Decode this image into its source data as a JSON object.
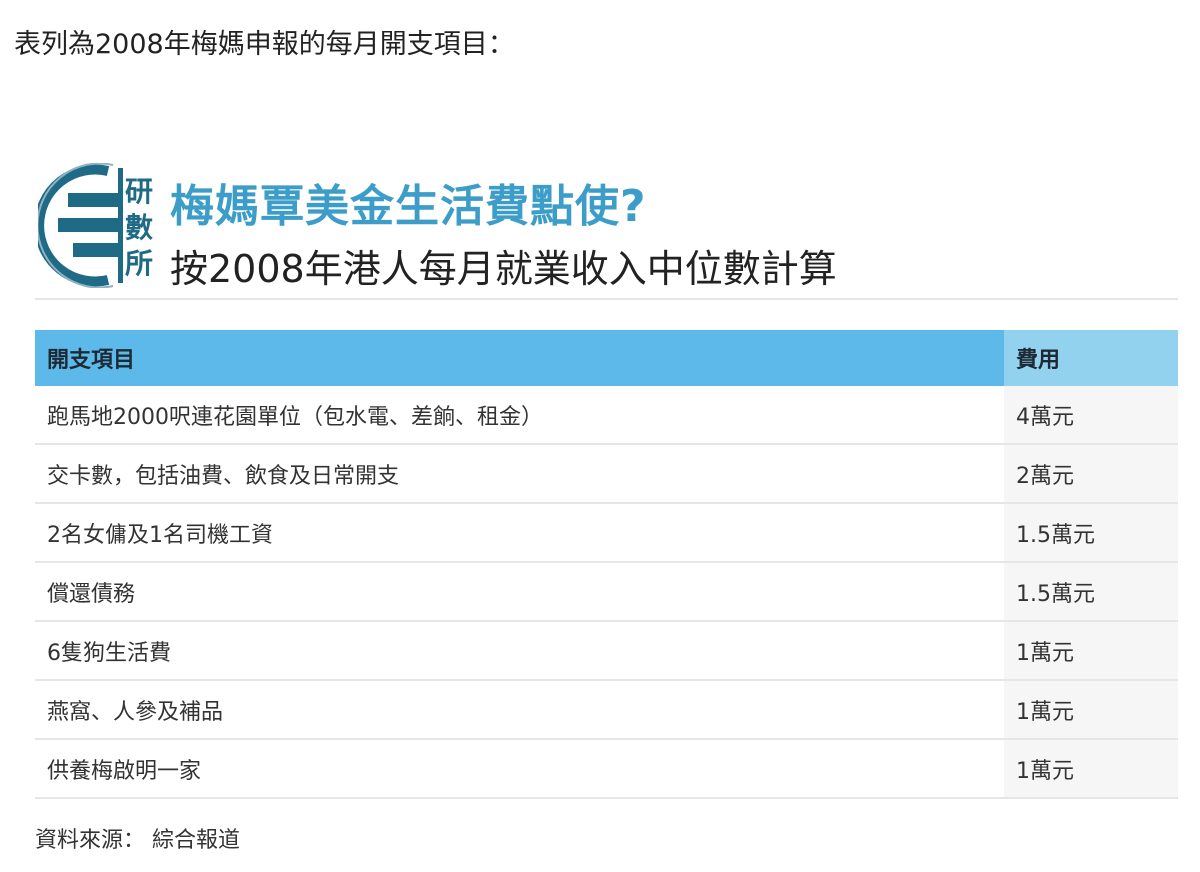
{
  "intro": "表列為2008年梅媽申報的每月開支項目：",
  "logo": {
    "text": "研數所",
    "color": "#1f6b86"
  },
  "title": "梅媽覃美金生活費點使?",
  "subtitle": "按2008年港人每月就業收入中位數計算",
  "table": {
    "headers": [
      "開支項目",
      "費用"
    ],
    "rows": [
      [
        "跑馬地2000呎連花園單位（包水電、差餉、租金）",
        "4萬元"
      ],
      [
        "交卡數，包括油費、飲食及日常開支",
        "2萬元"
      ],
      [
        "2名女傭及1名司機工資",
        "1.5萬元"
      ],
      [
        "償還債務",
        "1.5萬元"
      ],
      [
        "6隻狗生活費",
        "1萬元"
      ],
      [
        "燕窩、人參及補品",
        "1萬元"
      ],
      [
        "供養梅啟明一家",
        "1萬元"
      ]
    ]
  },
  "source": "資料來源：  綜合報道",
  "colors": {
    "title": "#3d9dc9",
    "header": "#5cb9e9",
    "header_cost": "#93d2ef"
  }
}
